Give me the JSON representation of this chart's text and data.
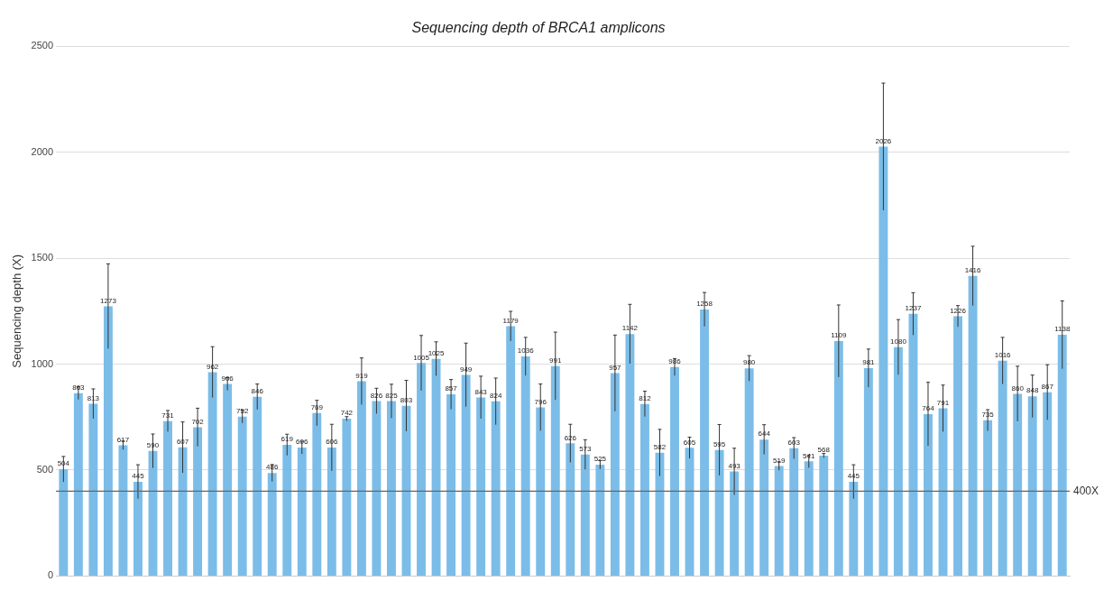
{
  "chart_data": {
    "type": "bar",
    "title": "Sequencing depth of BRCA1 amplicons",
    "ylabel": "Sequencing depth (X)",
    "categories": [
      null,
      null,
      null,
      null,
      null,
      null,
      null,
      null,
      null,
      null,
      null,
      null,
      null,
      null,
      null,
      null,
      null,
      null,
      null,
      null,
      null,
      null,
      null,
      null,
      null,
      null,
      null,
      null,
      null,
      null,
      null,
      null,
      null,
      null,
      null,
      null,
      null,
      null,
      null,
      null,
      null,
      null,
      null,
      null,
      null,
      null,
      null,
      null,
      null,
      null,
      null,
      null,
      null,
      null,
      null,
      null,
      null,
      null,
      null,
      null,
      null,
      null,
      null,
      null,
      null,
      null,
      null,
      null
    ],
    "values": [
      504,
      863,
      813,
      1273,
      617,
      445,
      590,
      731,
      607,
      702,
      962,
      906,
      752,
      846,
      486,
      619,
      606,
      769,
      606,
      742,
      919,
      826,
      825,
      803,
      1005,
      1025,
      857,
      949,
      843,
      824,
      1179,
      1036,
      796,
      991,
      626,
      573,
      525,
      957,
      1142,
      812,
      582,
      986,
      605,
      1258,
      595,
      493,
      980,
      644,
      519,
      603,
      541,
      568,
      1109,
      445,
      981,
      2026,
      1080,
      1237,
      764,
      791,
      1226,
      1416,
      735,
      1016,
      860,
      848,
      867,
      1138
    ],
    "errors": [
      60,
      30,
      70,
      200,
      20,
      80,
      80,
      50,
      120,
      90,
      120,
      30,
      30,
      60,
      40,
      50,
      30,
      60,
      110,
      10,
      110,
      60,
      80,
      120,
      130,
      80,
      70,
      150,
      100,
      110,
      70,
      90,
      110,
      160,
      90,
      70,
      20,
      180,
      140,
      60,
      110,
      40,
      50,
      80,
      120,
      110,
      60,
      70,
      20,
      50,
      30,
      10,
      170,
      80,
      90,
      300,
      130,
      100,
      150,
      110,
      50,
      140,
      50,
      110,
      130,
      100,
      130,
      160
    ],
    "color": "#7bbde8",
    "data_labels": true,
    "ylim": [
      0,
      2500
    ],
    "yticks": [
      0,
      500,
      1000,
      1500,
      2000,
      2500
    ],
    "grid": "y",
    "tick_labels": "y",
    "ref_lines": [
      {
        "axis": "y",
        "value": 400,
        "label": "400X",
        "color": "#666666"
      }
    ]
  }
}
